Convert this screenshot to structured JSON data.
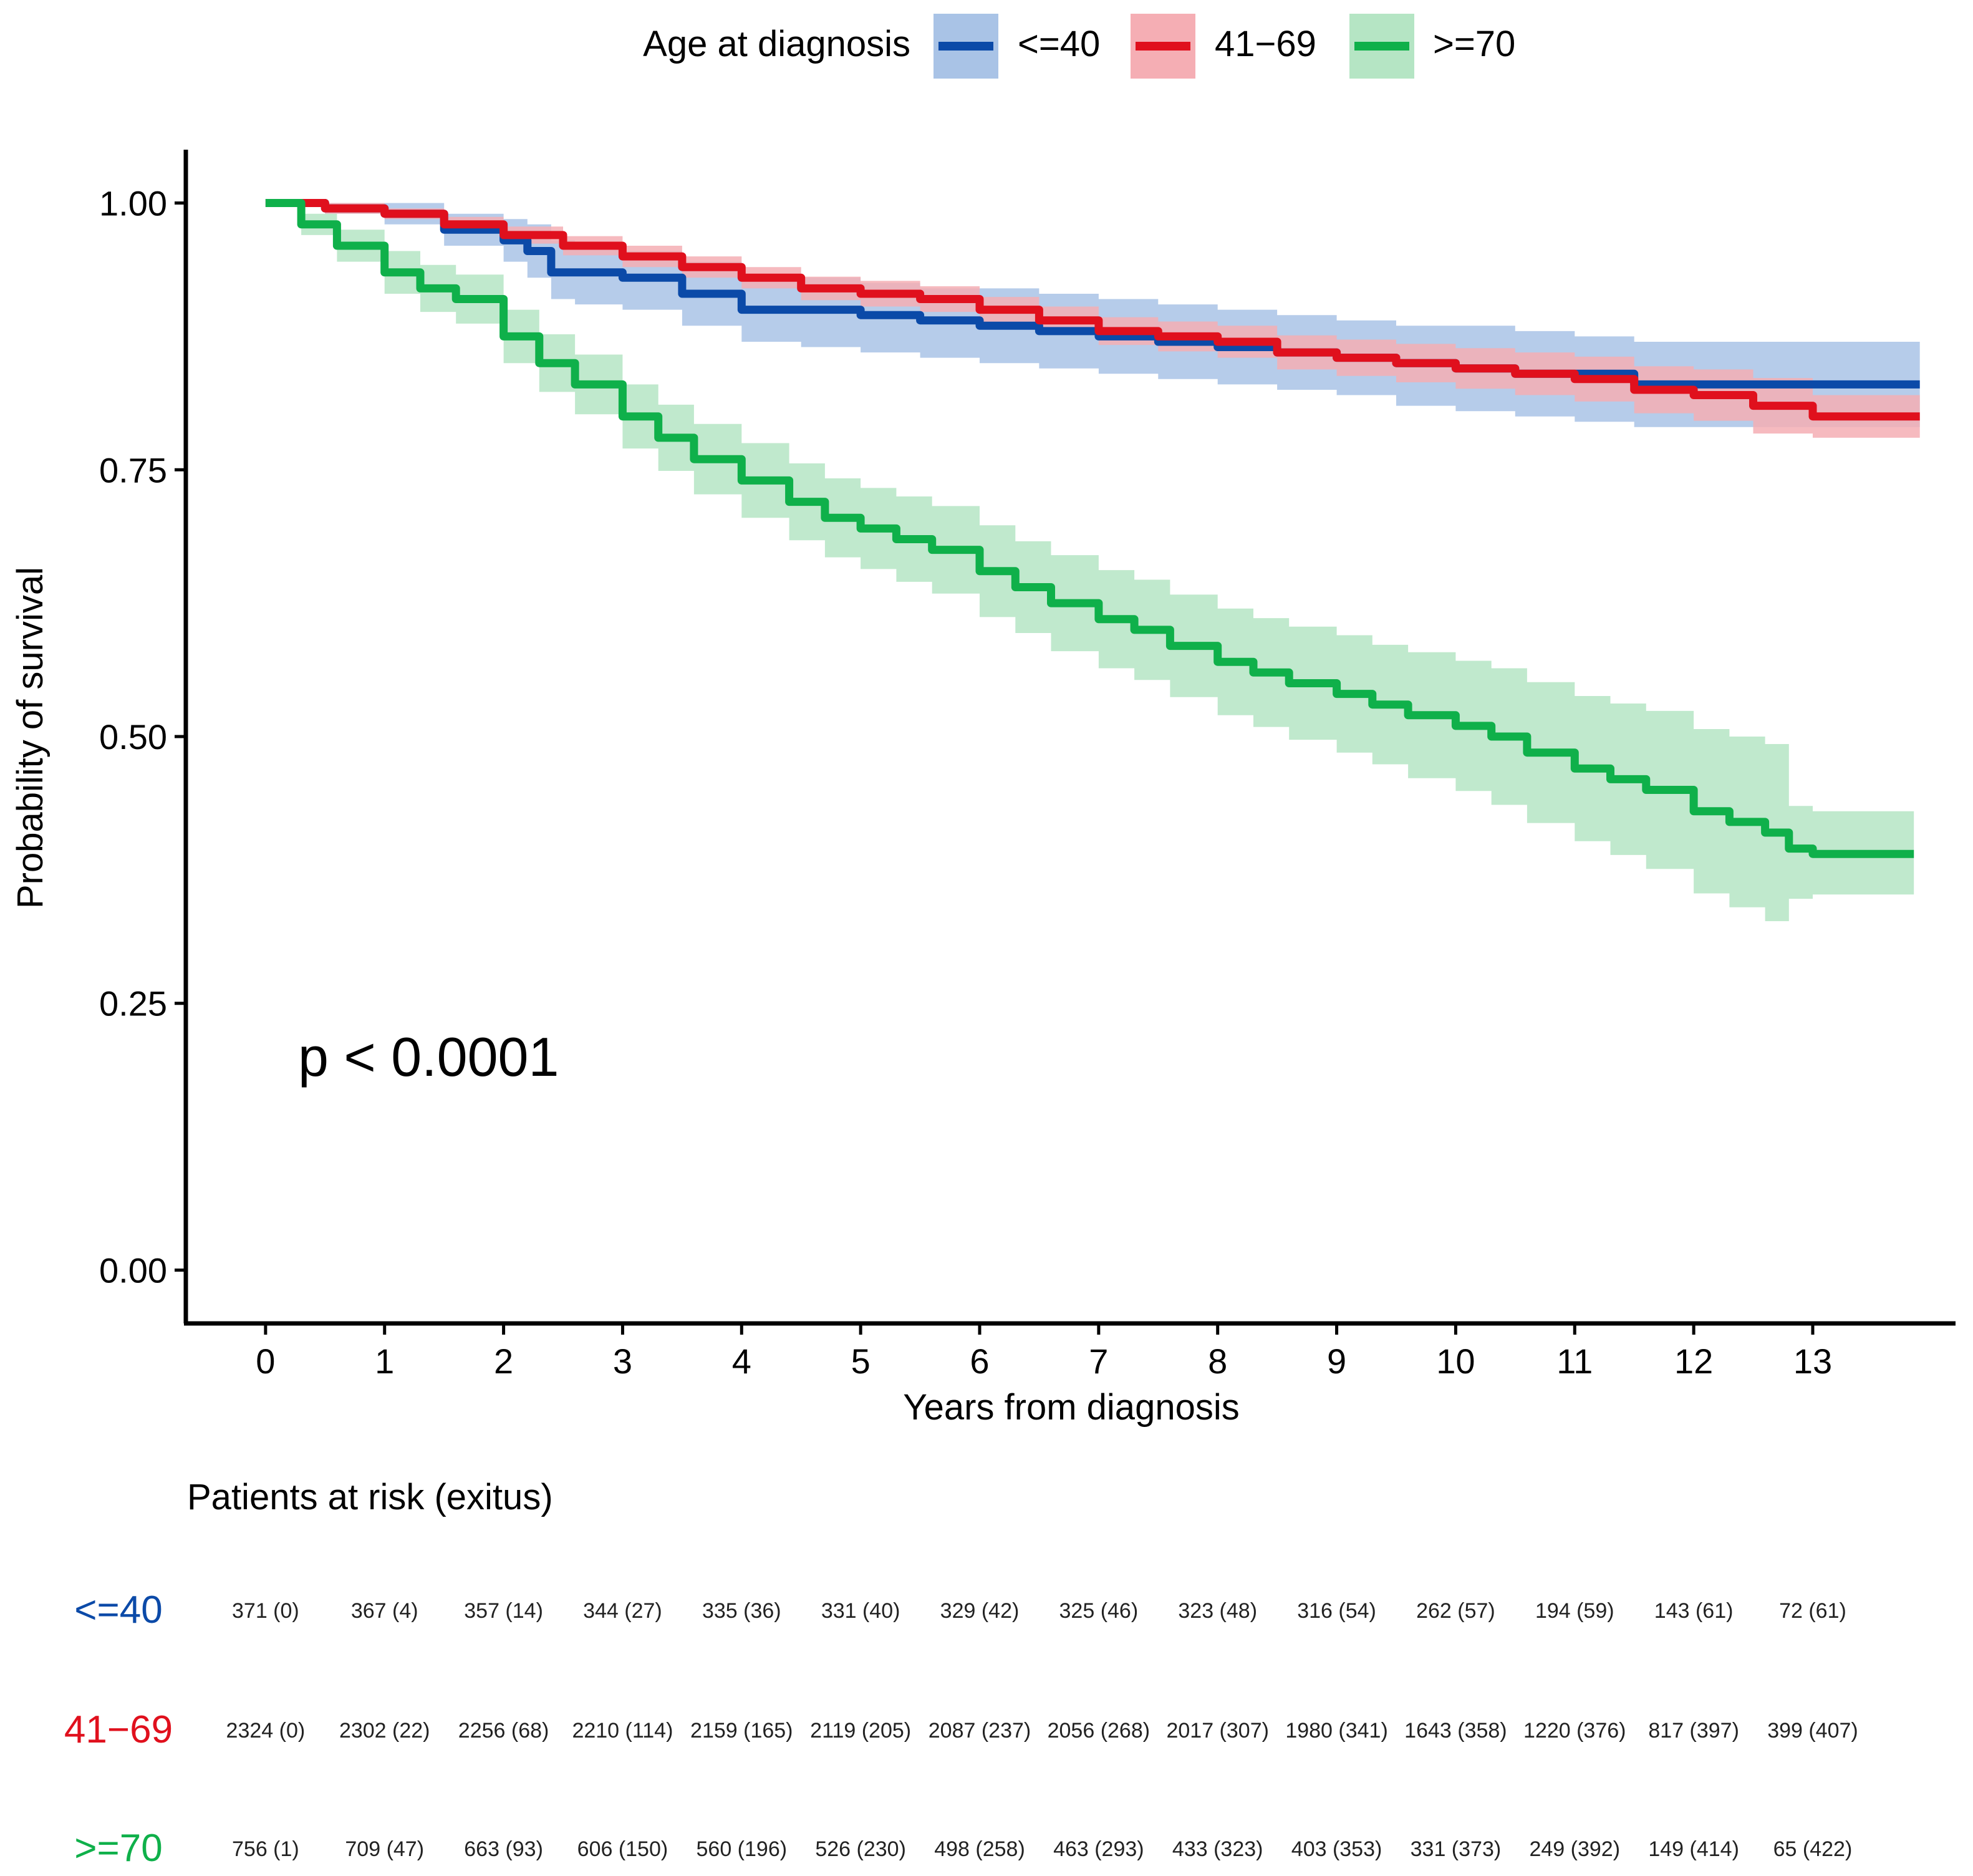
{
  "chart_data": {
    "type": "line",
    "subtype": "kaplan-meier",
    "legend": {
      "title": "Age at diagnosis",
      "position": "top",
      "entries": [
        "<=40",
        "41−69",
        ">=70"
      ]
    },
    "colors": {
      "<=40": "#0b4aa8",
      "<=40_band": "#a9c3e6",
      "41-69": "#e0101d",
      "41-69_band": "#f5aeb4",
      "70plus": "#0fb04a",
      "70plus_band": "#b5e5c4",
      "axis": "#000000"
    },
    "xlabel": "Years from diagnosis",
    "ylabel": "Probability of survival",
    "xlim": [
      -0.67,
      14.2
    ],
    "ylim": [
      -0.05,
      1.05
    ],
    "xticks": [
      0,
      1,
      2,
      3,
      4,
      5,
      6,
      7,
      8,
      9,
      10,
      11,
      12,
      13
    ],
    "yticks": [
      0.0,
      0.25,
      0.5,
      0.75,
      1.0
    ],
    "ytick_labels": [
      "0.00",
      "0.25",
      "0.50",
      "0.75",
      "1.00"
    ],
    "annotation": "p < 0.0001",
    "grid": false,
    "series": [
      {
        "name": "<=40",
        "x": [
          0,
          0.5,
          1,
          1.5,
          2,
          2.2,
          2.4,
          2.6,
          3,
          3.5,
          4,
          4.5,
          5,
          5.5,
          6,
          6.5,
          7,
          7.5,
          8,
          8.5,
          9,
          9.5,
          10,
          10.5,
          11,
          11.5,
          12,
          12.5,
          13,
          13.9
        ],
        "y": [
          1.0,
          0.995,
          0.99,
          0.975,
          0.965,
          0.955,
          0.935,
          0.935,
          0.93,
          0.915,
          0.9,
          0.9,
          0.895,
          0.89,
          0.885,
          0.88,
          0.875,
          0.87,
          0.865,
          0.86,
          0.855,
          0.85,
          0.845,
          0.84,
          0.84,
          0.83,
          0.83,
          0.83,
          0.83,
          0.83
        ],
        "ci_low": [
          1.0,
          0.99,
          0.98,
          0.96,
          0.945,
          0.93,
          0.91,
          0.905,
          0.9,
          0.885,
          0.87,
          0.865,
          0.86,
          0.855,
          0.85,
          0.845,
          0.84,
          0.835,
          0.83,
          0.825,
          0.82,
          0.81,
          0.805,
          0.8,
          0.795,
          0.79,
          0.79,
          0.79,
          0.79,
          0.79
        ],
        "ci_high": [
          1.0,
          1.0,
          1.0,
          0.99,
          0.985,
          0.98,
          0.965,
          0.96,
          0.955,
          0.945,
          0.93,
          0.93,
          0.925,
          0.92,
          0.92,
          0.915,
          0.91,
          0.905,
          0.9,
          0.895,
          0.89,
          0.885,
          0.885,
          0.88,
          0.875,
          0.87,
          0.87,
          0.87,
          0.87,
          0.87
        ]
      },
      {
        "name": "41−69",
        "x": [
          0,
          0.5,
          1,
          1.5,
          2,
          2.5,
          3,
          3.5,
          4,
          4.5,
          5,
          5.5,
          6,
          6.5,
          7,
          7.5,
          8,
          8.5,
          9,
          9.5,
          10,
          10.5,
          11,
          11.5,
          12,
          12.5,
          13,
          13.9
        ],
        "y": [
          1.0,
          0.995,
          0.99,
          0.98,
          0.97,
          0.96,
          0.95,
          0.94,
          0.93,
          0.92,
          0.915,
          0.91,
          0.9,
          0.89,
          0.88,
          0.875,
          0.87,
          0.86,
          0.855,
          0.85,
          0.845,
          0.84,
          0.835,
          0.825,
          0.82,
          0.81,
          0.8,
          0.8
        ],
        "ci_low": [
          1.0,
          0.99,
          0.985,
          0.973,
          0.962,
          0.951,
          0.94,
          0.93,
          0.92,
          0.909,
          0.903,
          0.898,
          0.888,
          0.877,
          0.867,
          0.861,
          0.855,
          0.844,
          0.838,
          0.832,
          0.826,
          0.82,
          0.814,
          0.803,
          0.796,
          0.784,
          0.78,
          0.78
        ],
        "ci_high": [
          1.0,
          1.0,
          0.995,
          0.987,
          0.978,
          0.969,
          0.96,
          0.95,
          0.94,
          0.931,
          0.927,
          0.922,
          0.912,
          0.903,
          0.893,
          0.889,
          0.885,
          0.876,
          0.872,
          0.868,
          0.864,
          0.86,
          0.856,
          0.847,
          0.844,
          0.836,
          0.82,
          0.82
        ]
      },
      {
        "name": ">=70",
        "x": [
          0,
          0.3,
          0.6,
          1,
          1.3,
          1.6,
          2,
          2.3,
          2.6,
          3,
          3.3,
          3.6,
          4,
          4.4,
          4.7,
          5,
          5.3,
          5.6,
          6,
          6.3,
          6.6,
          7,
          7.3,
          7.6,
          8,
          8.3,
          8.6,
          9,
          9.3,
          9.6,
          10,
          10.3,
          10.6,
          11,
          11.3,
          11.6,
          12,
          12.3,
          12.6,
          12.8,
          13,
          13.3,
          13.85
        ],
        "y": [
          1.0,
          0.98,
          0.96,
          0.935,
          0.92,
          0.91,
          0.875,
          0.85,
          0.83,
          0.8,
          0.78,
          0.76,
          0.74,
          0.72,
          0.705,
          0.695,
          0.685,
          0.675,
          0.655,
          0.64,
          0.625,
          0.61,
          0.6,
          0.585,
          0.57,
          0.56,
          0.55,
          0.54,
          0.53,
          0.52,
          0.51,
          0.5,
          0.485,
          0.47,
          0.46,
          0.45,
          0.43,
          0.42,
          0.41,
          0.395,
          0.39,
          0.39,
          0.39
        ],
        "ci_low": [
          1.0,
          0.97,
          0.945,
          0.915,
          0.898,
          0.887,
          0.85,
          0.823,
          0.802,
          0.77,
          0.749,
          0.727,
          0.705,
          0.684,
          0.668,
          0.657,
          0.645,
          0.634,
          0.612,
          0.597,
          0.58,
          0.564,
          0.553,
          0.537,
          0.52,
          0.509,
          0.497,
          0.485,
          0.474,
          0.461,
          0.449,
          0.436,
          0.419,
          0.402,
          0.389,
          0.376,
          0.353,
          0.34,
          0.327,
          0.348,
          0.352,
          0.352,
          0.352
        ],
        "ci_high": [
          1.0,
          0.99,
          0.975,
          0.955,
          0.942,
          0.933,
          0.9,
          0.877,
          0.858,
          0.83,
          0.811,
          0.793,
          0.775,
          0.756,
          0.742,
          0.733,
          0.725,
          0.716,
          0.698,
          0.683,
          0.67,
          0.656,
          0.647,
          0.633,
          0.62,
          0.611,
          0.603,
          0.595,
          0.586,
          0.579,
          0.571,
          0.564,
          0.551,
          0.538,
          0.531,
          0.524,
          0.507,
          0.5,
          0.493,
          0.435,
          0.43,
          0.43,
          0.43
        ]
      }
    ],
    "risk_table": {
      "title": "Patients at risk (exitus)",
      "times": [
        0,
        1,
        2,
        3,
        4,
        5,
        6,
        7,
        8,
        9,
        10,
        11,
        12,
        13
      ],
      "rows": [
        {
          "name": "<=40",
          "cells": [
            "371 (0)",
            "367 (4)",
            "357 (14)",
            "344 (27)",
            "335 (36)",
            "331 (40)",
            "329 (42)",
            "325 (46)",
            "323 (48)",
            "316 (54)",
            "262 (57)",
            "194 (59)",
            "143 (61)",
            "72 (61)"
          ]
        },
        {
          "name": "41−69",
          "cells": [
            "2324 (0)",
            "2302 (22)",
            "2256 (68)",
            "2210 (114)",
            "2159 (165)",
            "2119 (205)",
            "2087 (237)",
            "2056 (268)",
            "2017 (307)",
            "1980 (341)",
            "1643 (358)",
            "1220 (376)",
            "817 (397)",
            "399 (407)"
          ]
        },
        {
          "name": ">=70",
          "cells": [
            "756 (1)",
            "709 (47)",
            "663 (93)",
            "606 (150)",
            "560 (196)",
            "526 (230)",
            "498 (258)",
            "463 (293)",
            "433 (323)",
            "403 (353)",
            "331 (373)",
            "249 (392)",
            "149 (414)",
            "65 (422)"
          ]
        }
      ]
    }
  }
}
